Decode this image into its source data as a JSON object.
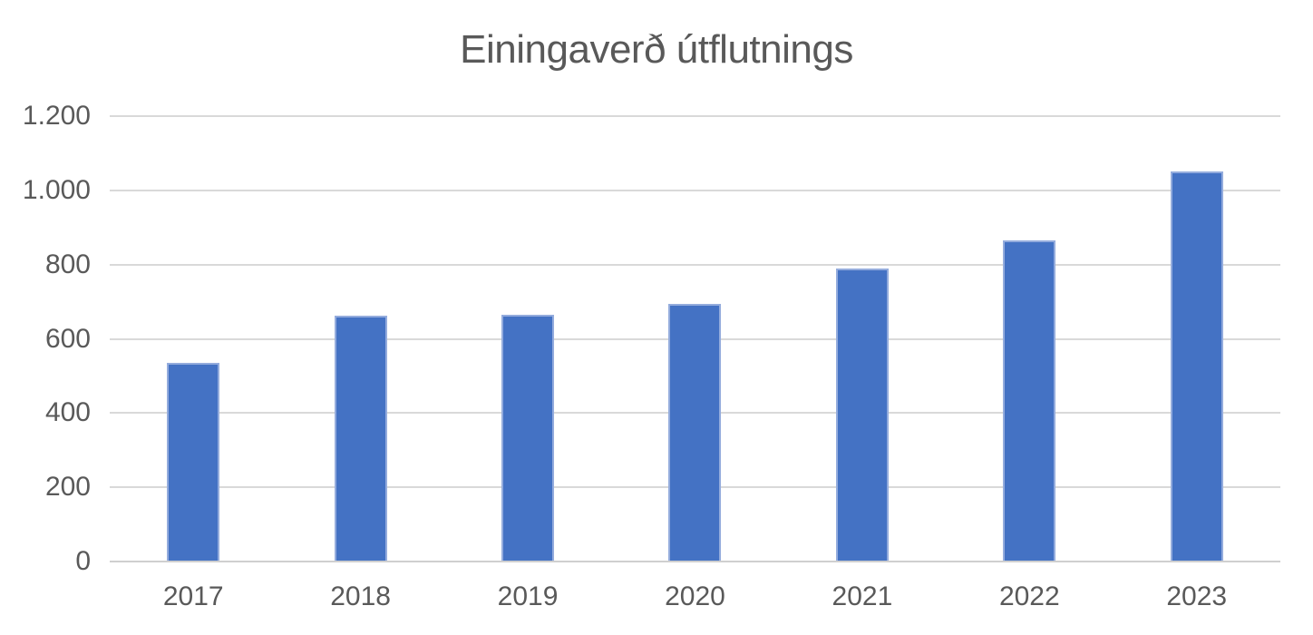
{
  "chart_data": {
    "type": "bar",
    "title": "Einingaverð útflutnings",
    "categories": [
      "2017",
      "2018",
      "2019",
      "2020",
      "2021",
      "2022",
      "2023"
    ],
    "values": [
      535,
      662,
      665,
      693,
      790,
      864,
      1051
    ],
    "xlabel": "",
    "ylabel": "",
    "ylim": [
      0,
      1200
    ],
    "ytick_step": 200,
    "ytick_labels": [
      "0",
      "200",
      "400",
      "600",
      "800",
      "1.000",
      "1.200"
    ],
    "grid": true,
    "legend": "none",
    "colors": {
      "bar_fill": "#4472C4",
      "bar_border": "#94ACDD",
      "text": "#595959",
      "gridline": "#D9D9D9",
      "axis_line": "#CFCFCF",
      "background": "#FFFFFF"
    }
  }
}
